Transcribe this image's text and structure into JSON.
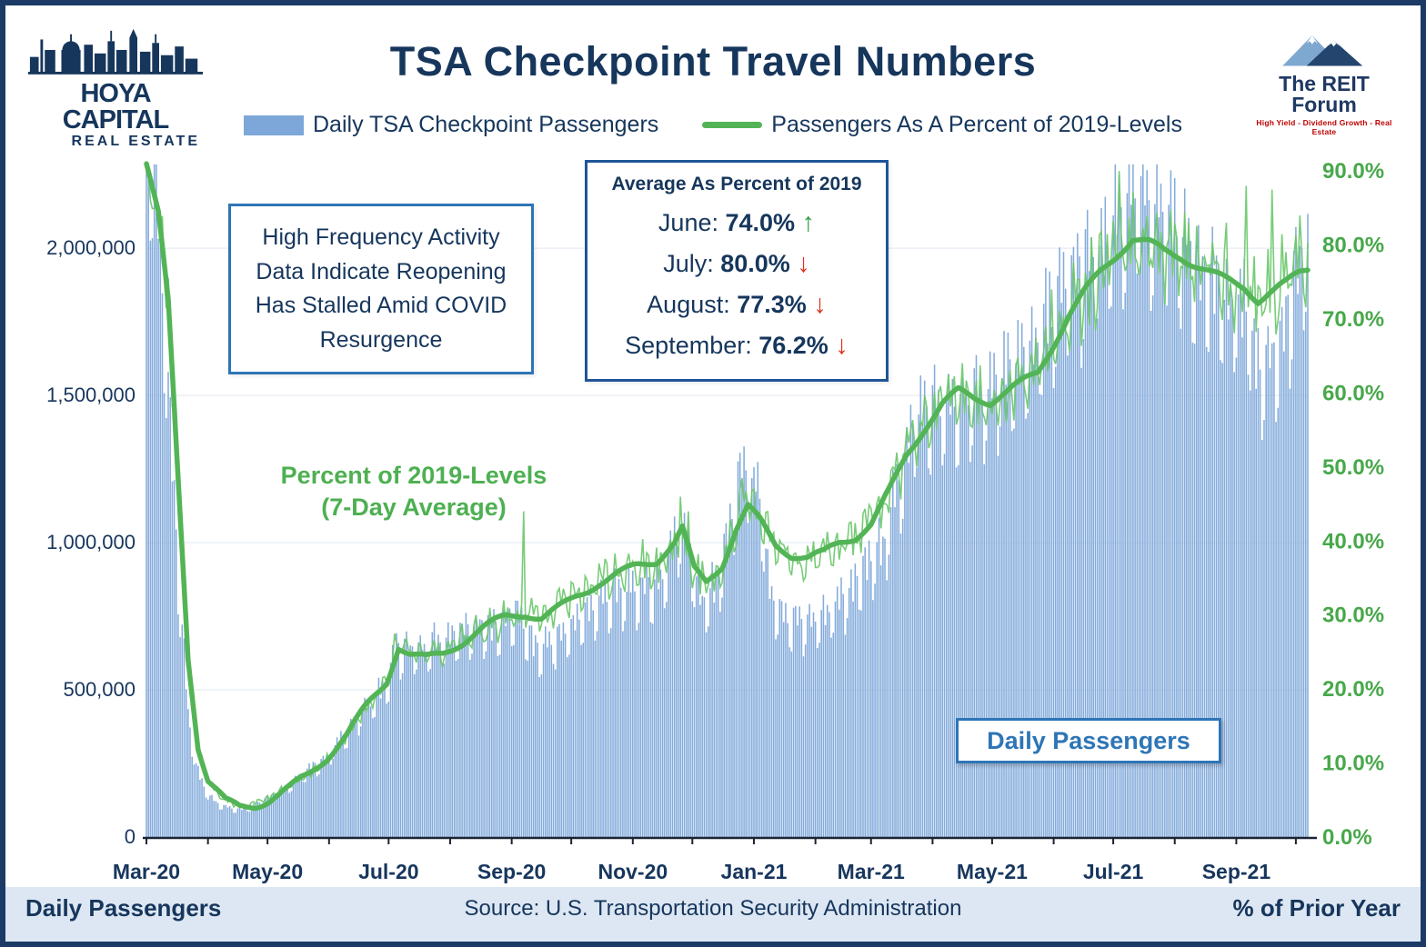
{
  "header": {
    "title": "TSA Checkpoint Travel Numbers",
    "legend": [
      {
        "label": "Daily TSA Checkpoint Passengers",
        "type": "bar"
      },
      {
        "label": "Passengers As A Percent of 2019-Levels",
        "type": "line"
      }
    ]
  },
  "logos": {
    "hoya": {
      "line1": "HOYA CAPITAL",
      "line2": "REAL ESTATE"
    },
    "reit_forum": {
      "name": "The REIT Forum",
      "tagline": "High Yield - Dividend Growth - Real Estate"
    }
  },
  "annotations": {
    "callout": "High Frequency Activity Data Indicate Reopening Has Stalled Amid COVID Resurgence",
    "stats_box": {
      "title": "Average As Percent of 2019",
      "rows": [
        {
          "label": "June:",
          "value": "74.0%",
          "arrow": "↑",
          "direction": "up"
        },
        {
          "label": "July:",
          "value": "80.0%",
          "arrow": "↓",
          "direction": "down"
        },
        {
          "label": "August:",
          "value": "77.3%",
          "arrow": "↓",
          "direction": "down"
        },
        {
          "label": "September:",
          "value": "76.2%",
          "arrow": "↓",
          "direction": "down"
        }
      ]
    },
    "line_label_line1": "Percent of 2019-Levels",
    "line_label_line2": "(7-Day Average)",
    "bars_label": "Daily Passengers"
  },
  "footer": {
    "left": "Daily Passengers",
    "center": "Source: U.S. Transportation Security Administration",
    "right": "% of Prior Year"
  },
  "colors": {
    "navy": "#16365c",
    "blue_bar": "#7da7d9",
    "green_label": "#4db051",
    "green_line_avg": "#53b456",
    "green_line_daily": "#69c66a",
    "up": "#2f9e44",
    "down": "#e0301e",
    "accent_blue": "#2e75b6"
  },
  "chart_data": {
    "type": "combo",
    "title": "TSA Checkpoint Travel Numbers",
    "date_range": [
      "2020-03-01",
      "2021-10-07"
    ],
    "x_ticks": [
      "Mar-20",
      "May-20",
      "Jul-20",
      "Sep-20",
      "Nov-20",
      "Jan-21",
      "Mar-21",
      "May-21",
      "Jul-21",
      "Sep-21"
    ],
    "x_tick_dates": [
      "2020-03-01",
      "2020-05-01",
      "2020-07-01",
      "2020-09-01",
      "2020-11-01",
      "2021-01-01",
      "2021-03-01",
      "2021-05-01",
      "2021-07-01",
      "2021-09-01"
    ],
    "grid": true,
    "legend_position": "top",
    "left_axis": {
      "label": "Daily Passengers",
      "ticks": [
        0,
        500000,
        1000000,
        1500000,
        2000000
      ],
      "tick_labels": [
        "0",
        "500,000",
        "1,000,000",
        "1,500,000",
        "2,000,000"
      ],
      "max": 2300000
    },
    "right_axis": {
      "label": "% of Prior Year",
      "ticks": [
        0,
        10,
        20,
        30,
        40,
        50,
        60,
        70,
        80,
        90
      ],
      "max": 91.5
    },
    "series": [
      {
        "name": "Daily TSA Checkpoint Passengers",
        "type": "bar",
        "axis": "left",
        "color": "#7da7d9",
        "weekday_factors": [
          1.05,
          1.0,
          0.85,
          0.87,
          1.03,
          1.07,
          0.96
        ],
        "keypoints": [
          [
            "2020-03-01",
            2280000
          ],
          [
            "2020-03-06",
            2200000
          ],
          [
            "2020-03-10",
            1700000
          ],
          [
            "2020-03-14",
            1260000
          ],
          [
            "2020-03-18",
            780000
          ],
          [
            "2020-03-22",
            410000
          ],
          [
            "2020-03-26",
            230000
          ],
          [
            "2020-03-31",
            150000
          ],
          [
            "2020-04-05",
            115000
          ],
          [
            "2020-04-14",
            92000
          ],
          [
            "2020-04-22",
            100000
          ],
          [
            "2020-04-30",
            125000
          ],
          [
            "2020-05-10",
            165000
          ],
          [
            "2020-05-21",
            220000
          ],
          [
            "2020-05-31",
            265000
          ],
          [
            "2020-06-10",
            350000
          ],
          [
            "2020-06-21",
            440000
          ],
          [
            "2020-06-30",
            510000
          ],
          [
            "2020-07-05",
            630000
          ],
          [
            "2020-07-15",
            620000
          ],
          [
            "2020-07-26",
            650000
          ],
          [
            "2020-08-09",
            690000
          ],
          [
            "2020-08-23",
            700000
          ],
          [
            "2020-09-04",
            750000
          ],
          [
            "2020-09-13",
            620000
          ],
          [
            "2020-09-24",
            660000
          ],
          [
            "2020-10-04",
            720000
          ],
          [
            "2020-10-18",
            800000
          ],
          [
            "2020-11-01",
            820000
          ],
          [
            "2020-11-15",
            850000
          ],
          [
            "2020-11-25",
            1050000
          ],
          [
            "2020-11-29",
            980000
          ],
          [
            "2020-12-06",
            760000
          ],
          [
            "2020-12-13",
            850000
          ],
          [
            "2020-12-19",
            1000000
          ],
          [
            "2020-12-23",
            1150000
          ],
          [
            "2020-12-27",
            1240000
          ],
          [
            "2021-01-03",
            1150000
          ],
          [
            "2021-01-10",
            780000
          ],
          [
            "2021-01-17",
            720000
          ],
          [
            "2021-01-24",
            710000
          ],
          [
            "2021-02-07",
            740000
          ],
          [
            "2021-02-14",
            800000
          ],
          [
            "2021-02-21",
            840000
          ],
          [
            "2021-03-07",
            980000
          ],
          [
            "2021-03-14",
            1150000
          ],
          [
            "2021-03-21",
            1350000
          ],
          [
            "2021-03-28",
            1430000
          ],
          [
            "2021-04-11",
            1420000
          ],
          [
            "2021-04-25",
            1470000
          ],
          [
            "2021-05-09",
            1540000
          ],
          [
            "2021-05-23",
            1650000
          ],
          [
            "2021-05-31",
            1750000
          ],
          [
            "2021-06-13",
            1880000
          ],
          [
            "2021-06-27",
            1960000
          ],
          [
            "2021-07-04",
            2080000
          ],
          [
            "2021-07-11",
            2140000
          ],
          [
            "2021-07-18",
            2120000
          ],
          [
            "2021-07-25",
            2080000
          ],
          [
            "2021-08-01",
            2020000
          ],
          [
            "2021-08-08",
            1970000
          ],
          [
            "2021-08-15",
            1900000
          ],
          [
            "2021-08-22",
            1830000
          ],
          [
            "2021-08-29",
            1760000
          ],
          [
            "2021-09-06",
            1780000
          ],
          [
            "2021-09-12",
            1560000
          ],
          [
            "2021-09-19",
            1600000
          ],
          [
            "2021-09-26",
            1720000
          ],
          [
            "2021-10-03",
            1900000
          ],
          [
            "2021-10-07",
            1960000
          ]
        ]
      },
      {
        "name": "Passengers As A Percent of 2019-Levels (7-Day Average)",
        "type": "line",
        "axis": "right",
        "color": "#53b456",
        "width": 5.5,
        "keypoints": [
          [
            "2020-03-01",
            91
          ],
          [
            "2020-03-07",
            84
          ],
          [
            "2020-03-12",
            72
          ],
          [
            "2020-03-17",
            48
          ],
          [
            "2020-03-22",
            24
          ],
          [
            "2020-03-27",
            12
          ],
          [
            "2020-04-01",
            7.5
          ],
          [
            "2020-04-10",
            4.8
          ],
          [
            "2020-04-17",
            4.2
          ],
          [
            "2020-04-25",
            4.6
          ],
          [
            "2020-05-02",
            5.4
          ],
          [
            "2020-05-12",
            6.8
          ],
          [
            "2020-05-22",
            8.5
          ],
          [
            "2020-05-31",
            10.5
          ],
          [
            "2020-06-10",
            13.5
          ],
          [
            "2020-06-20",
            17.5
          ],
          [
            "2020-06-30",
            21
          ],
          [
            "2020-07-06",
            26
          ],
          [
            "2020-07-12",
            25
          ],
          [
            "2020-07-20",
            24.5
          ],
          [
            "2020-07-28",
            25
          ],
          [
            "2020-08-08",
            26.5
          ],
          [
            "2020-08-18",
            28
          ],
          [
            "2020-08-29",
            29.5
          ],
          [
            "2020-09-08",
            30
          ],
          [
            "2020-09-16",
            29.5
          ],
          [
            "2020-09-24",
            31
          ],
          [
            "2020-10-04",
            33
          ],
          [
            "2020-10-14",
            34.5
          ],
          [
            "2020-10-24",
            35.5
          ],
          [
            "2020-11-03",
            36.5
          ],
          [
            "2020-11-13",
            37
          ],
          [
            "2020-11-22",
            39.5
          ],
          [
            "2020-11-26",
            41.5
          ],
          [
            "2020-12-02",
            36
          ],
          [
            "2020-12-08",
            34.5
          ],
          [
            "2020-12-16",
            37
          ],
          [
            "2020-12-23",
            42
          ],
          [
            "2020-12-29",
            45
          ],
          [
            "2021-01-04",
            43
          ],
          [
            "2021-01-12",
            39.5
          ],
          [
            "2021-01-20",
            38
          ],
          [
            "2021-01-28",
            37.5
          ],
          [
            "2021-02-05",
            38
          ],
          [
            "2021-02-13",
            39.5
          ],
          [
            "2021-02-21",
            40.5
          ],
          [
            "2021-03-01",
            42.5
          ],
          [
            "2021-03-10",
            47
          ],
          [
            "2021-03-19",
            52
          ],
          [
            "2021-03-28",
            55.5
          ],
          [
            "2021-04-06",
            58.5
          ],
          [
            "2021-04-14",
            60
          ],
          [
            "2021-04-22",
            59
          ],
          [
            "2021-04-30",
            58.5
          ],
          [
            "2021-05-08",
            60
          ],
          [
            "2021-05-16",
            61.5
          ],
          [
            "2021-05-24",
            63
          ],
          [
            "2021-06-01",
            67
          ],
          [
            "2021-06-09",
            71
          ],
          [
            "2021-06-17",
            74
          ],
          [
            "2021-06-25",
            76.5
          ],
          [
            "2021-07-03",
            78.5
          ],
          [
            "2021-07-11",
            80.5
          ],
          [
            "2021-07-19",
            80
          ],
          [
            "2021-07-27",
            79
          ],
          [
            "2021-08-04",
            78.5
          ],
          [
            "2021-08-12",
            77.5
          ],
          [
            "2021-08-20",
            76.5
          ],
          [
            "2021-08-28",
            75.5
          ],
          [
            "2021-09-05",
            74.5
          ],
          [
            "2021-09-12",
            72.5
          ],
          [
            "2021-09-19",
            73.5
          ],
          [
            "2021-09-26",
            74.5
          ],
          [
            "2021-10-03",
            76
          ],
          [
            "2021-10-07",
            76.5
          ]
        ]
      },
      {
        "name": "Passengers As A Percent of 2019-Levels (Daily)",
        "type": "line",
        "axis": "right",
        "color": "#69c66a",
        "width": 1.6,
        "weekday_wiggle": [
          0.035,
          0.01,
          -0.045,
          -0.035,
          0.02,
          0.05,
          -0.03
        ],
        "spikes": [
          [
            "2020-07-04",
            27.5
          ],
          [
            "2020-09-07",
            44
          ],
          [
            "2020-11-25",
            46
          ],
          [
            "2020-11-29",
            44
          ],
          [
            "2020-12-26",
            48.5
          ],
          [
            "2021-01-01",
            47
          ],
          [
            "2021-05-31",
            74
          ],
          [
            "2021-07-04",
            90
          ],
          [
            "2021-07-18",
            84
          ],
          [
            "2021-08-01",
            83
          ],
          [
            "2021-09-06",
            88
          ],
          [
            "2021-09-19",
            87.5
          ],
          [
            "2021-10-03",
            84
          ]
        ]
      }
    ]
  }
}
